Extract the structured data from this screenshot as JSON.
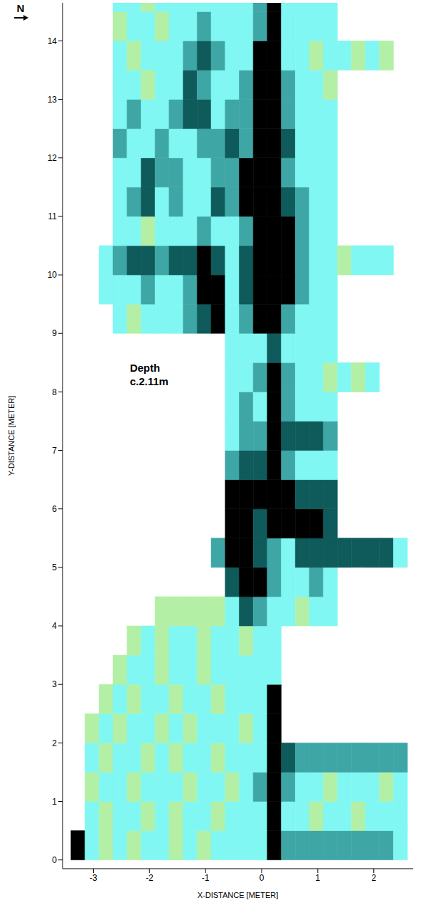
{
  "chart_data": {
    "type": "heatmap",
    "north_label": "N",
    "xlabel": "X-DISTANCE [METER]",
    "ylabel": "Y-DISTANCE [METER]",
    "xlim": [
      -3.55,
      2.7
    ],
    "ylim": [
      -0.15,
      14.65
    ],
    "xticks": [
      -3,
      -2,
      -1,
      0,
      1,
      2
    ],
    "yticks": [
      0,
      1,
      2,
      3,
      4,
      5,
      6,
      7,
      8,
      9,
      10,
      11,
      12,
      13,
      14
    ],
    "annotations": [
      {
        "lines": [
          "Depth",
          "c.2.11m"
        ],
        "x": -2.35,
        "y": 8.35
      }
    ],
    "colors": [
      "#b3f0a6",
      "#80f7f2",
      "#3fa6a6",
      "#0f5a5a",
      "#000000"
    ],
    "x_edges": [
      -3.4,
      -3.15,
      -2.9,
      -2.65,
      -2.4,
      -2.15,
      -1.9,
      -1.65,
      -1.4,
      -1.15,
      -0.9,
      -0.65,
      -0.4,
      -0.15,
      0.1,
      0.35,
      0.6,
      0.85,
      1.1,
      1.35,
      1.6,
      1.85,
      2.1,
      2.35,
      2.6
    ],
    "y_edges": [
      0,
      0.5,
      1,
      1.5,
      2,
      2.5,
      3,
      3.5,
      4,
      4.5,
      5,
      5.5,
      6,
      6.5,
      7,
      7.5,
      8,
      8.5,
      9,
      9.5,
      10,
      10.5,
      11,
      11.5,
      12,
      12.5,
      13,
      13.5,
      14,
      14.5,
      14.65
    ],
    "cells": [
      [
        4,
        1,
        0,
        1,
        0,
        1,
        1,
        0,
        1,
        0,
        1,
        1,
        1,
        1,
        4,
        2,
        2,
        2,
        2,
        2,
        2,
        2,
        2,
        1
      ],
      [
        null,
        1,
        0,
        1,
        1,
        0,
        1,
        0,
        1,
        1,
        0,
        1,
        1,
        1,
        4,
        1,
        1,
        0,
        1,
        1,
        0,
        1,
        1,
        1
      ],
      [
        null,
        0,
        1,
        1,
        0,
        1,
        1,
        1,
        0,
        1,
        1,
        0,
        1,
        2,
        4,
        2,
        1,
        1,
        0,
        1,
        1,
        1,
        0,
        1
      ],
      [
        null,
        1,
        0,
        1,
        1,
        0,
        1,
        0,
        1,
        1,
        0,
        1,
        1,
        1,
        4,
        3,
        2,
        2,
        2,
        2,
        2,
        2,
        2,
        2
      ],
      [
        null,
        0,
        1,
        0,
        1,
        1,
        0,
        1,
        0,
        1,
        1,
        1,
        0,
        1,
        4,
        null,
        null,
        null,
        null,
        null,
        null,
        null,
        null,
        null
      ],
      [
        null,
        null,
        0,
        1,
        0,
        1,
        1,
        0,
        1,
        1,
        0,
        1,
        1,
        1,
        4,
        null,
        null,
        null,
        null,
        null,
        null,
        null,
        null,
        null
      ],
      [
        null,
        null,
        null,
        0,
        1,
        1,
        0,
        1,
        1,
        0,
        1,
        1,
        1,
        1,
        1,
        null,
        null,
        null,
        null,
        null,
        null,
        null,
        null,
        null
      ],
      [
        null,
        null,
        null,
        null,
        0,
        1,
        0,
        1,
        1,
        0,
        1,
        1,
        0,
        1,
        1,
        null,
        null,
        null,
        null,
        null,
        null,
        null,
        null,
        null
      ],
      [
        null,
        null,
        null,
        null,
        null,
        null,
        0,
        0,
        0,
        0,
        0,
        1,
        3,
        2,
        1,
        1,
        0,
        1,
        1,
        null,
        null,
        null,
        null,
        null
      ],
      [
        null,
        null,
        null,
        null,
        null,
        null,
        null,
        null,
        null,
        null,
        null,
        3,
        4,
        4,
        2,
        1,
        1,
        2,
        1,
        null,
        null,
        null,
        null,
        null
      ],
      [
        null,
        null,
        null,
        null,
        null,
        null,
        null,
        null,
        null,
        null,
        2,
        4,
        4,
        3,
        2,
        1,
        3,
        3,
        3,
        3,
        3,
        3,
        3,
        1
      ],
      [
        null,
        null,
        null,
        null,
        null,
        null,
        null,
        null,
        null,
        null,
        null,
        4,
        4,
        3,
        4,
        4,
        4,
        4,
        3,
        null,
        null,
        null,
        null,
        null
      ],
      [
        null,
        null,
        null,
        null,
        null,
        null,
        null,
        null,
        null,
        null,
        null,
        4,
        4,
        4,
        4,
        4,
        3,
        3,
        3,
        null,
        null,
        null,
        null,
        null
      ],
      [
        null,
        null,
        null,
        null,
        null,
        null,
        null,
        null,
        null,
        null,
        null,
        2,
        3,
        3,
        4,
        2,
        1,
        1,
        1,
        null,
        null,
        null,
        null,
        null
      ],
      [
        null,
        null,
        null,
        null,
        null,
        null,
        null,
        null,
        null,
        null,
        null,
        1,
        2,
        2,
        4,
        3,
        3,
        3,
        2,
        null,
        null,
        null,
        null,
        null
      ],
      [
        null,
        null,
        null,
        null,
        null,
        null,
        null,
        null,
        null,
        null,
        null,
        1,
        2,
        1,
        4,
        2,
        1,
        1,
        1,
        null,
        null,
        null,
        null,
        null
      ],
      [
        null,
        null,
        null,
        null,
        null,
        null,
        null,
        null,
        null,
        null,
        null,
        1,
        1,
        2,
        4,
        2,
        1,
        1,
        0,
        1,
        0,
        1,
        null,
        null
      ],
      [
        null,
        null,
        null,
        null,
        null,
        null,
        null,
        null,
        null,
        null,
        null,
        1,
        1,
        1,
        3,
        1,
        1,
        1,
        1,
        null,
        null,
        null,
        null,
        null
      ],
      [
        null,
        null,
        null,
        1,
        0,
        1,
        1,
        1,
        2,
        3,
        4,
        1,
        2,
        4,
        4,
        2,
        1,
        1,
        1,
        null,
        null,
        null,
        null,
        null
      ],
      [
        null,
        null,
        1,
        1,
        1,
        2,
        1,
        1,
        2,
        4,
        4,
        1,
        3,
        4,
        4,
        4,
        2,
        1,
        1,
        null,
        null,
        null,
        null,
        null
      ],
      [
        null,
        null,
        1,
        2,
        3,
        3,
        2,
        3,
        3,
        4,
        3,
        1,
        3,
        4,
        4,
        4,
        2,
        1,
        1,
        0,
        1,
        1,
        1,
        null
      ],
      [
        null,
        null,
        null,
        1,
        1,
        0,
        1,
        1,
        1,
        2,
        1,
        1,
        2,
        4,
        4,
        4,
        2,
        1,
        1,
        null,
        null,
        null,
        null,
        null
      ],
      [
        null,
        null,
        null,
        1,
        2,
        3,
        1,
        2,
        1,
        1,
        3,
        2,
        4,
        4,
        4,
        3,
        2,
        1,
        1,
        null,
        null,
        null,
        null,
        null
      ],
      [
        null,
        null,
        null,
        1,
        1,
        3,
        2,
        2,
        1,
        1,
        2,
        2,
        4,
        4,
        4,
        2,
        1,
        1,
        1,
        null,
        null,
        null,
        null,
        null
      ],
      [
        null,
        null,
        null,
        2,
        1,
        1,
        2,
        1,
        1,
        2,
        2,
        3,
        2,
        4,
        4,
        3,
        1,
        1,
        1,
        null,
        null,
        null,
        null,
        null
      ],
      [
        null,
        null,
        null,
        1,
        2,
        1,
        1,
        2,
        3,
        3,
        1,
        2,
        2,
        4,
        4,
        2,
        1,
        1,
        1,
        null,
        null,
        null,
        null,
        null
      ],
      [
        null,
        null,
        null,
        1,
        1,
        0,
        1,
        1,
        3,
        2,
        1,
        1,
        2,
        4,
        4,
        2,
        1,
        1,
        0,
        null,
        null,
        null,
        null,
        null
      ],
      [
        null,
        null,
        null,
        1,
        0,
        1,
        1,
        1,
        2,
        3,
        2,
        1,
        1,
        4,
        4,
        1,
        1,
        0,
        1,
        1,
        0,
        1,
        0,
        null
      ],
      [
        null,
        null,
        null,
        0,
        1,
        1,
        0,
        1,
        1,
        2,
        1,
        1,
        1,
        2,
        4,
        1,
        1,
        1,
        1,
        null,
        null,
        null,
        null,
        null
      ],
      [
        null,
        null,
        null,
        1,
        1,
        0,
        1,
        1,
        1,
        1,
        1,
        1,
        1,
        2,
        4,
        1,
        1,
        1,
        1,
        null,
        null,
        null,
        null,
        null
      ]
    ]
  }
}
